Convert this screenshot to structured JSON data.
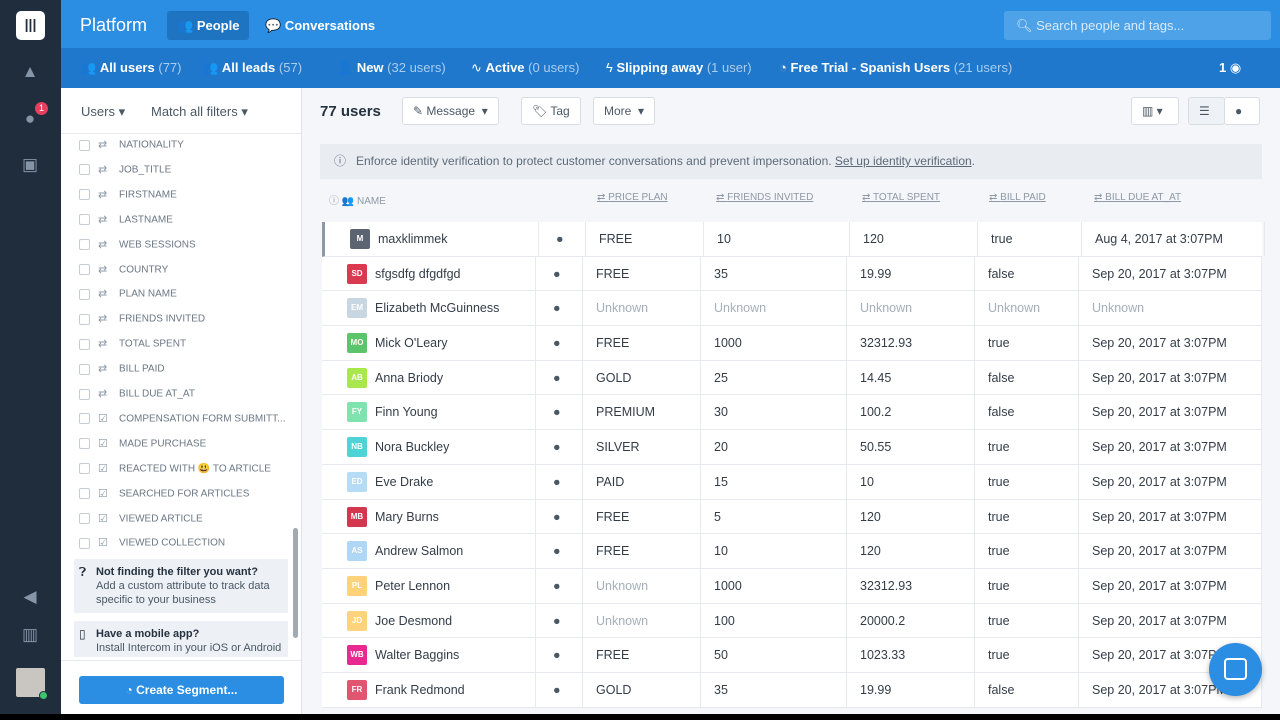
{
  "nav": {
    "badge_count": "1",
    "icons": [
      "intercom-logo",
      "rocket-icon",
      "help-icon",
      "search-box-icon",
      "megaphone-icon",
      "book-icon",
      "avatar"
    ]
  },
  "header": {
    "brand": "Platform",
    "tabs": [
      {
        "label": "People",
        "active": true
      },
      {
        "label": "Conversations"
      }
    ],
    "search_placeholder": "Search people and tags..."
  },
  "segments": [
    {
      "label": "All users",
      "count": "(77)"
    },
    {
      "label": "All leads",
      "count": "(57)"
    },
    {
      "label": "New",
      "count": "(32 users)"
    },
    {
      "label": "Active",
      "count": "(0 users)"
    },
    {
      "label": "Slipping away",
      "count": "(1 user)"
    },
    {
      "label": "Free Trial - Spanish Users",
      "count": "(21 users)"
    }
  ],
  "hidden_count": "1",
  "sidebar": {
    "users_label": "Users",
    "match_label": "Match all filters",
    "filters": [
      {
        "label": "NATIONALITY",
        "type": "attr"
      },
      {
        "label": "JOB_TITLE",
        "type": "attr"
      },
      {
        "label": "FIRSTNAME",
        "type": "attr"
      },
      {
        "label": "LASTNAME",
        "type": "attr"
      },
      {
        "label": "WEB SESSIONS",
        "type": "attr"
      },
      {
        "label": "COUNTRY",
        "type": "attr"
      },
      {
        "label": "PLAN NAME",
        "type": "attr"
      },
      {
        "label": "FRIENDS INVITED",
        "type": "attr"
      },
      {
        "label": "TOTAL SPENT",
        "type": "attr"
      },
      {
        "label": "BILL PAID",
        "type": "attr"
      },
      {
        "label": "BILL DUE AT_AT",
        "type": "attr"
      },
      {
        "label": "COMPENSATION FORM SUBMITT...",
        "type": "event"
      },
      {
        "label": "MADE PURCHASE",
        "type": "event"
      },
      {
        "label": "REACTED WITH 😃 TO ARTICLE",
        "type": "event"
      },
      {
        "label": "SEARCHED FOR ARTICLES",
        "type": "event"
      },
      {
        "label": "VIEWED ARTICLE",
        "type": "event"
      },
      {
        "label": "VIEWED COLLECTION",
        "type": "event"
      }
    ],
    "tip1_title": "Not finding the filter you want?",
    "tip1_body": "Add a custom attribute to track data specific to your business",
    "tip2_title": "Have a mobile app?",
    "tip2_body": "Install Intercom in your iOS or Android",
    "create_segment": "Create Segment..."
  },
  "toolbar": {
    "count": "77 users",
    "message": "Message",
    "tag": "Tag",
    "more": "More"
  },
  "notice": {
    "text": "Enforce identity verification to protect customer conversations and prevent impersonation.",
    "link": "Set up identity verification",
    "end": "."
  },
  "columns": [
    "NAME",
    "PRICE PLAN",
    "FRIENDS INVITED",
    "TOTAL SPENT",
    "BILL PAID",
    "BILL DUE AT_AT"
  ],
  "rows": [
    {
      "initials": "M",
      "color": "#5b6470",
      "name": "maxklimmek",
      "plan": "FREE",
      "friends": "10",
      "spent": "120",
      "paid": "true",
      "due": "Aug 4, 2017 at 3:07PM"
    },
    {
      "initials": "SD",
      "color": "#d93a4f",
      "name": "sfgsdfg dfgdfgd",
      "plan": "FREE",
      "friends": "35",
      "spent": "19.99",
      "paid": "false",
      "due": "Sep 20, 2017 at 3:07PM"
    },
    {
      "initials": "EM",
      "color": "#c8d6e2",
      "name": "Elizabeth McGuinness",
      "plan": "Unknown",
      "friends": "Unknown",
      "spent": "Unknown",
      "paid": "Unknown",
      "due": "Unknown"
    },
    {
      "initials": "MO",
      "color": "#5cc46a",
      "name": "Mick O'Leary",
      "plan": "FREE",
      "friends": "1000",
      "spent": "32312.93",
      "paid": "true",
      "due": "Sep 20, 2017 at 3:07PM"
    },
    {
      "initials": "AB",
      "color": "#a8e84c",
      "name": "Anna Briody",
      "plan": "GOLD",
      "friends": "25",
      "spent": "14.45",
      "paid": "false",
      "due": "Sep 20, 2017 at 3:07PM"
    },
    {
      "initials": "FY",
      "color": "#7fe3b0",
      "name": "Finn Young",
      "plan": "PREMIUM",
      "friends": "30",
      "spent": "100.2",
      "paid": "false",
      "due": "Sep 20, 2017 at 3:07PM"
    },
    {
      "initials": "NB",
      "color": "#4fd3d6",
      "name": "Nora Buckley",
      "plan": "SILVER",
      "friends": "20",
      "spent": "50.55",
      "paid": "true",
      "due": "Sep 20, 2017 at 3:07PM"
    },
    {
      "initials": "ED",
      "color": "#b5dbf5",
      "name": "Eve Drake",
      "plan": "PAID",
      "friends": "15",
      "spent": "10",
      "paid": "true",
      "due": "Sep 20, 2017 at 3:07PM"
    },
    {
      "initials": "MB",
      "color": "#d4364e",
      "name": "Mary Burns",
      "plan": "FREE",
      "friends": "5",
      "spent": "120",
      "paid": "true",
      "due": "Sep 20, 2017 at 3:07PM"
    },
    {
      "initials": "AS",
      "color": "#b0d6f5",
      "name": "Andrew Salmon",
      "plan": "FREE",
      "friends": "10",
      "spent": "120",
      "paid": "true",
      "due": "Sep 20, 2017 at 3:07PM"
    },
    {
      "initials": "PL",
      "color": "#ffd27a",
      "name": "Peter Lennon",
      "plan": "Unknown",
      "friends": "1000",
      "spent": "32312.93",
      "paid": "true",
      "due": "Sep 20, 2017 at 3:07PM"
    },
    {
      "initials": "JD",
      "color": "#ffd37c",
      "name": "Joe Desmond",
      "plan": "Unknown",
      "friends": "100",
      "spent": "20000.2",
      "paid": "true",
      "due": "Sep 20, 2017 at 3:07PM"
    },
    {
      "initials": "WB",
      "color": "#e8298f",
      "name": "Walter Baggins",
      "plan": "FREE",
      "friends": "50",
      "spent": "1023.33",
      "paid": "true",
      "due": "Sep 20, 2017 at 3:07PM"
    },
    {
      "initials": "FR",
      "color": "#e05670",
      "name": "Frank Redmond",
      "plan": "GOLD",
      "friends": "35",
      "spent": "19.99",
      "paid": "false",
      "due": "Sep 20, 2017 at 3:07PM"
    }
  ]
}
